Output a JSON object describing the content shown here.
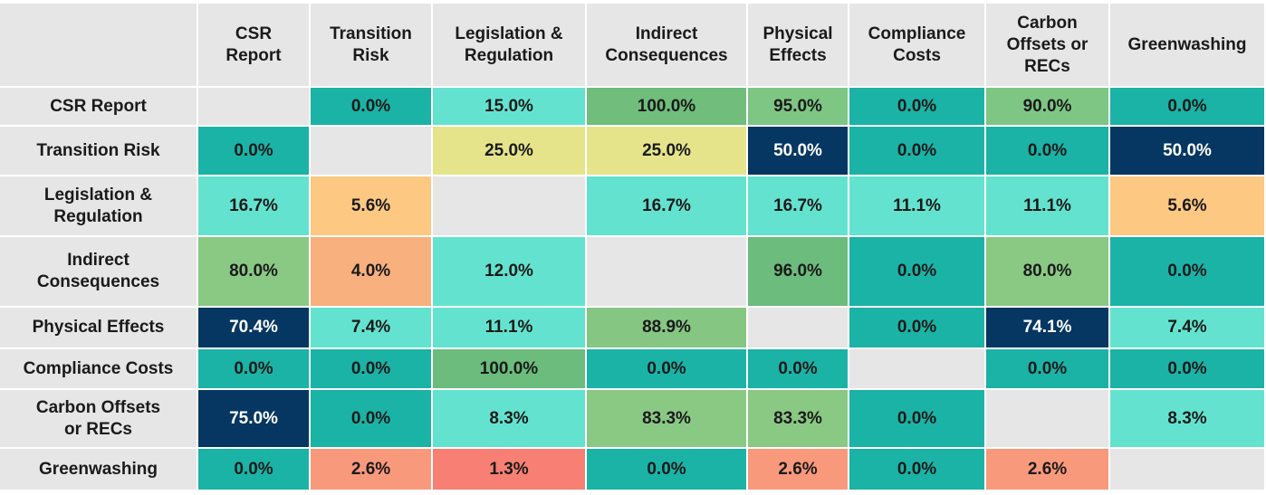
{
  "chart_data": {
    "type": "heatmap",
    "row_labels": [
      "CSR Report",
      "Transition Risk",
      "Legislation &\nRegulation",
      "Indirect\nConsequences",
      "Physical Effects",
      "Compliance Costs",
      "Carbon Offsets\nor RECs",
      "Greenwashing"
    ],
    "col_labels": [
      "CSR\nReport",
      "Transition\nRisk",
      "Legislation &\nRegulation",
      "Indirect\nConsequences",
      "Physical\nEffects",
      "Compliance\nCosts",
      "Carbon\nOffsets or\nRECs",
      "Greenwashing"
    ],
    "value_labels": [
      [
        "",
        "0.0%",
        "15.0%",
        "100.0%",
        "95.0%",
        "0.0%",
        "90.0%",
        "0.0%"
      ],
      [
        "0.0%",
        "",
        "25.0%",
        "25.0%",
        "50.0%",
        "0.0%",
        "0.0%",
        "50.0%"
      ],
      [
        "16.7%",
        "5.6%",
        "",
        "16.7%",
        "16.7%",
        "11.1%",
        "11.1%",
        "5.6%"
      ],
      [
        "80.0%",
        "4.0%",
        "12.0%",
        "",
        "96.0%",
        "0.0%",
        "80.0%",
        "0.0%"
      ],
      [
        "70.4%",
        "7.4%",
        "11.1%",
        "88.9%",
        "",
        "0.0%",
        "74.1%",
        "7.4%"
      ],
      [
        "0.0%",
        "0.0%",
        "100.0%",
        "0.0%",
        "0.0%",
        "",
        "0.0%",
        "0.0%"
      ],
      [
        "75.0%",
        "0.0%",
        "8.3%",
        "83.3%",
        "83.3%",
        "0.0%",
        "",
        "8.3%"
      ],
      [
        "0.0%",
        "2.6%",
        "1.3%",
        "0.0%",
        "2.6%",
        "0.0%",
        "2.6%",
        ""
      ]
    ],
    "cell_colors": [
      [
        "#e6e6e6",
        "#1ab3a6",
        "#63e3cf",
        "#70bd7c",
        "#7ec683",
        "#1ab3a6",
        "#7ec683",
        "#1ab3a6"
      ],
      [
        "#1ab3a6",
        "#e6e6e6",
        "#e5e48b",
        "#e5e48b",
        "#063762",
        "#1ab3a6",
        "#1ab3a6",
        "#063762"
      ],
      [
        "#63e3cf",
        "#fcc882",
        "#e6e6e6",
        "#63e3cf",
        "#63e3cf",
        "#63e3cf",
        "#63e3cf",
        "#fcc882"
      ],
      [
        "#8ac984",
        "#f8b07e",
        "#63e3cf",
        "#e6e6e6",
        "#6cbc7d",
        "#1ab3a6",
        "#8ac984",
        "#1ab3a6"
      ],
      [
        "#063762",
        "#63e3cf",
        "#63e3cf",
        "#86c683",
        "#e6e6e6",
        "#1ab3a6",
        "#063762",
        "#63e3cf"
      ],
      [
        "#1ab3a6",
        "#1ab3a6",
        "#6cbc7d",
        "#1ab3a6",
        "#1ab3a6",
        "#e6e6e6",
        "#1ab3a6",
        "#1ab3a6"
      ],
      [
        "#063762",
        "#1ab3a6",
        "#63e3cf",
        "#8ac984",
        "#8ac984",
        "#1ab3a6",
        "#e6e6e6",
        "#63e3cf"
      ],
      [
        "#1ab3a6",
        "#f9997c",
        "#f77f73",
        "#1ab3a6",
        "#f9997c",
        "#1ab3a6",
        "#f9997c",
        "#e6e6e6"
      ]
    ],
    "dark_text_color": "#ffffff",
    "default_text_color": "#1a1a1a",
    "header_color": "#e6e6e6"
  }
}
